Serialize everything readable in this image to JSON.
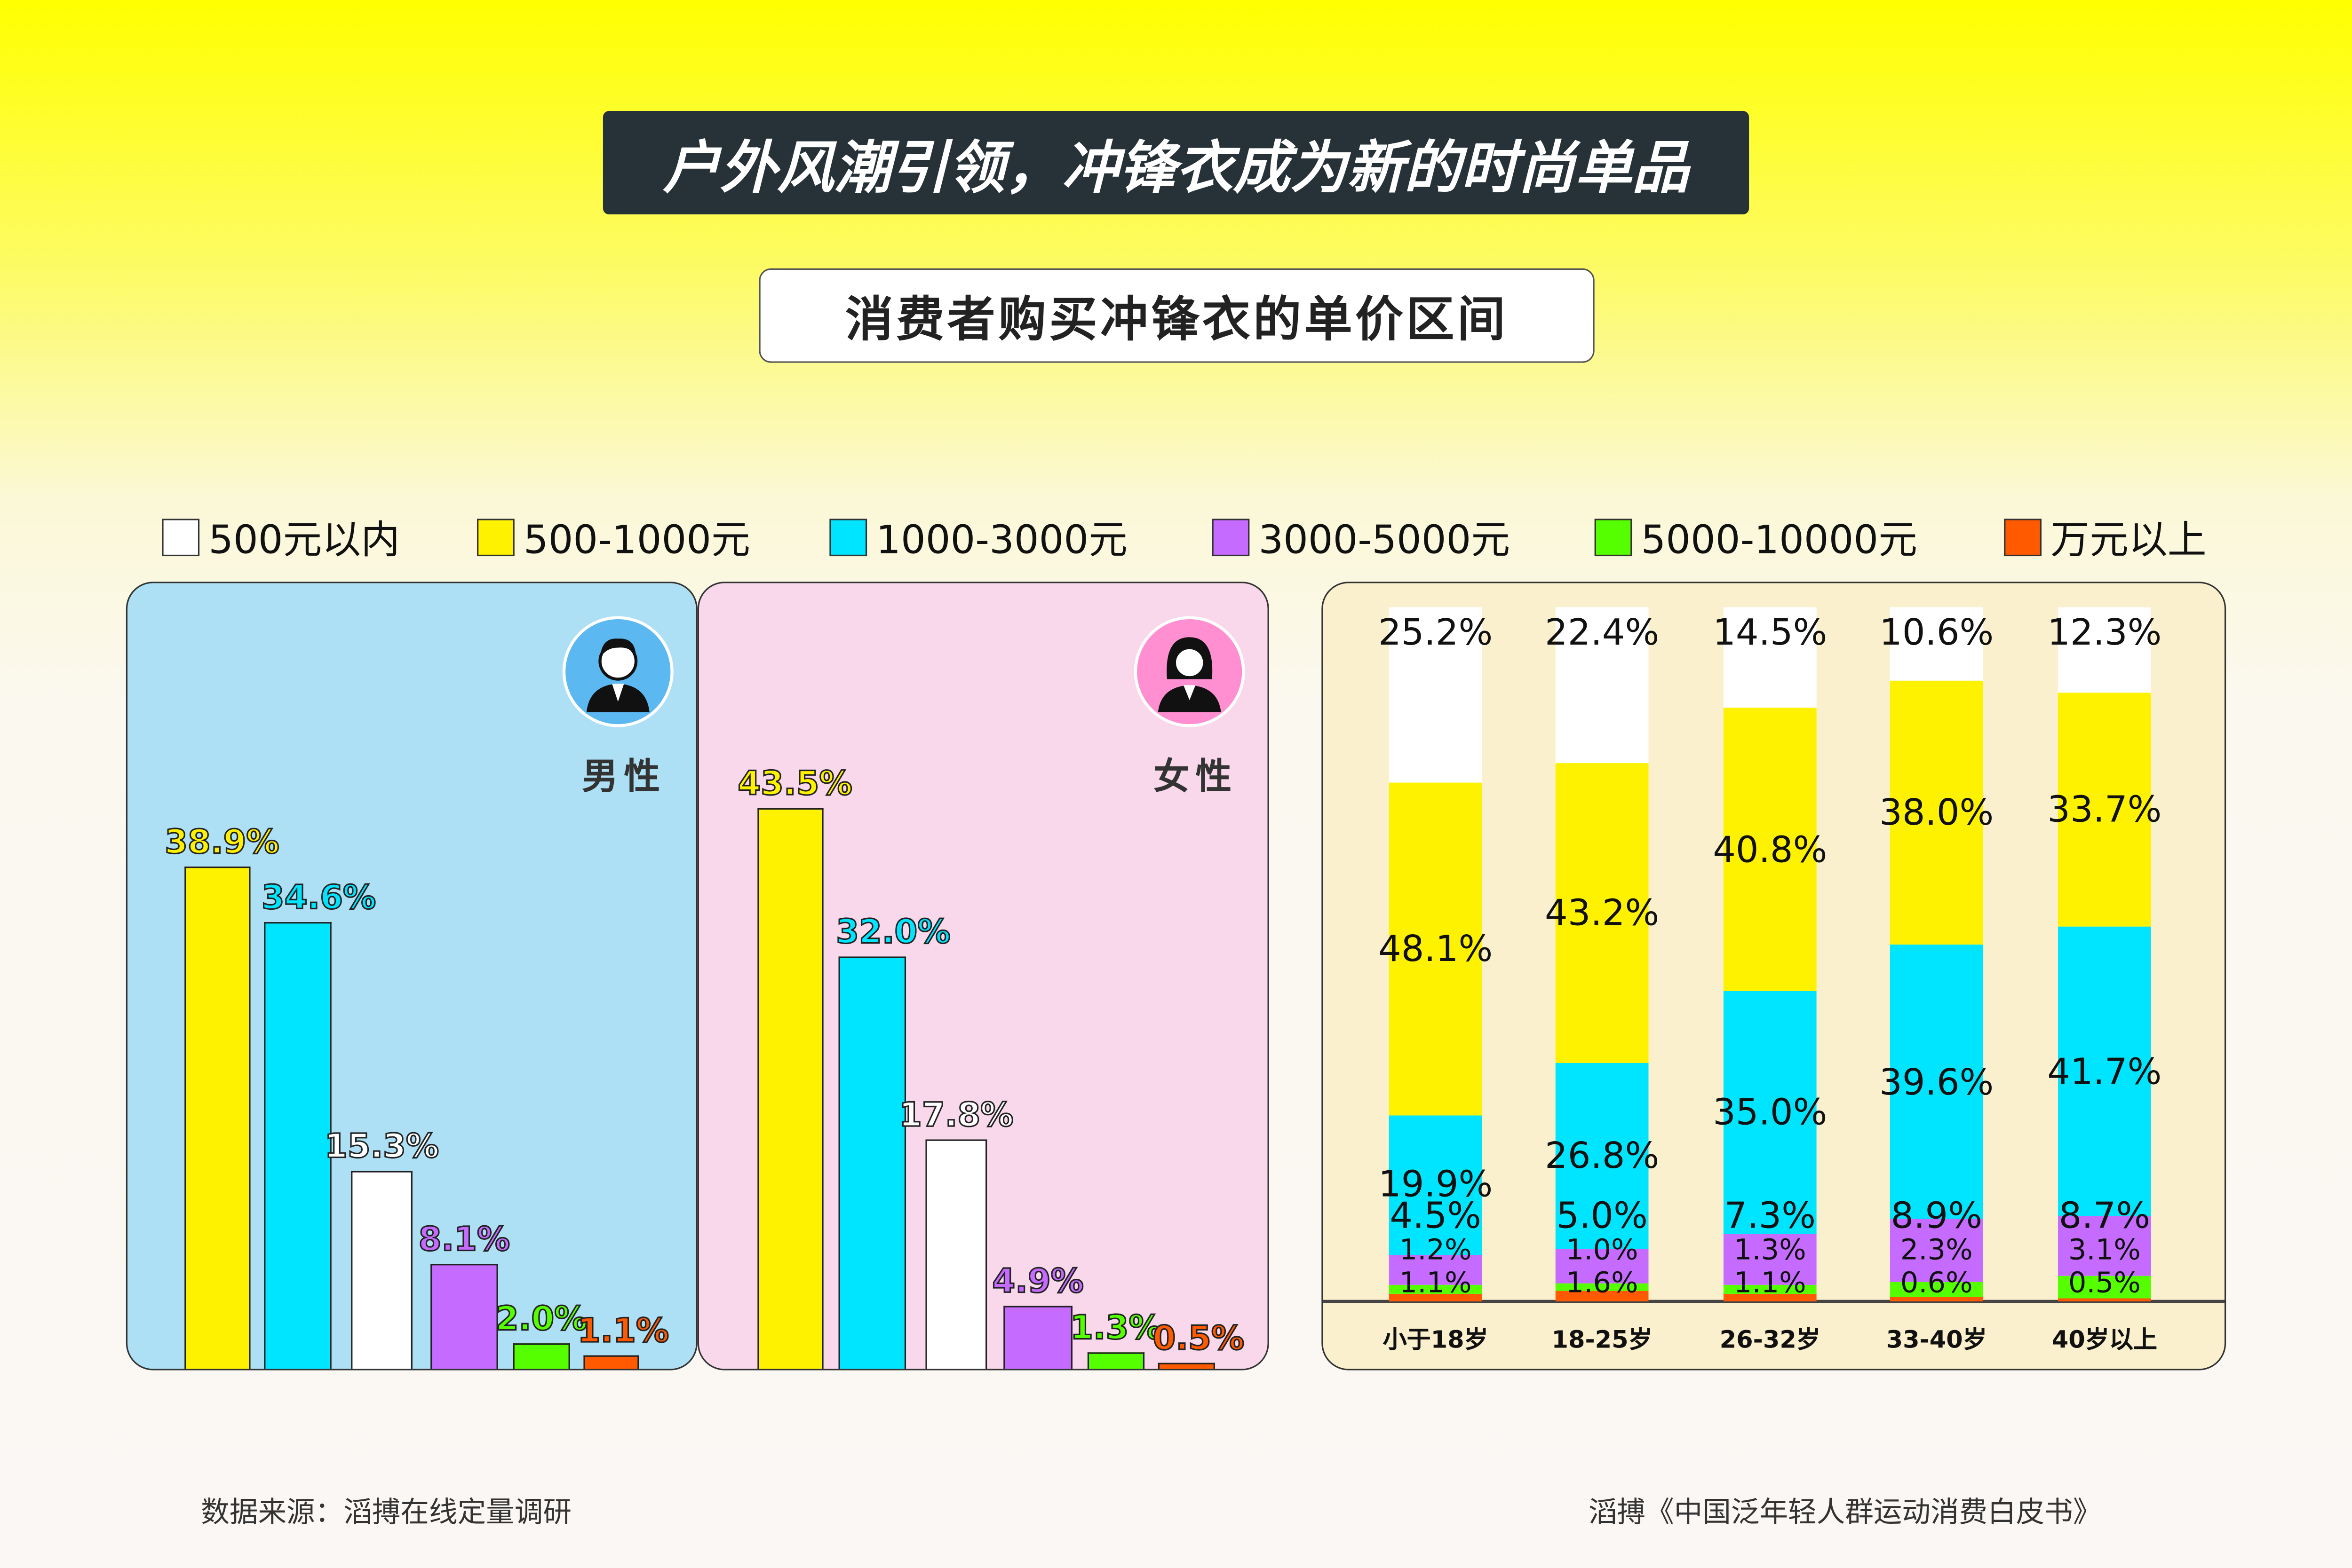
{
  "title": "户外风潮引领，冲锋衣成为新的时尚单品",
  "subtitle": "消费者购买冲锋衣的单价区间",
  "colors": {
    "500元以内": "#ffffff",
    "500-1000元": "#fff200",
    "1000-3000元": "#00e5ff",
    "3000-5000元": "#c56bff",
    "5000-10000元": "#55ff00",
    "万元以上": "#ff5a00"
  },
  "chart_data": [
    {
      "type": "bar",
      "title": "男性",
      "icon": "male-avatar-icon",
      "categories": [
        "500-1000元",
        "1000-3000元",
        "500元以内",
        "3000-5000元",
        "5000-10000元",
        "万元以上"
      ],
      "values": [
        38.9,
        34.6,
        15.3,
        8.1,
        2.0,
        1.1
      ],
      "labels": [
        "38.9%",
        "34.6%",
        "15.3%",
        "8.1%",
        "2.0%",
        "1.1%"
      ],
      "unit": "%"
    },
    {
      "type": "bar",
      "title": "女性",
      "icon": "female-avatar-icon",
      "categories": [
        "500-1000元",
        "1000-3000元",
        "500元以内",
        "3000-5000元",
        "5000-10000元",
        "万元以上"
      ],
      "values": [
        43.5,
        32.0,
        17.8,
        4.9,
        1.3,
        0.5
      ],
      "labels": [
        "43.5%",
        "32.0%",
        "17.8%",
        "4.9%",
        "1.3%",
        "0.5%"
      ],
      "unit": "%"
    },
    {
      "type": "bar",
      "stacked": true,
      "categories": [
        "小于18岁",
        "18-25岁",
        "26-32岁",
        "33-40岁",
        "40岁以上"
      ],
      "series": [
        {
          "name": "万元以上",
          "values": [
            1.1,
            1.6,
            1.1,
            0.6,
            0.5
          ]
        },
        {
          "name": "5000-10000元",
          "values": [
            1.2,
            1.0,
            1.3,
            2.3,
            3.1
          ]
        },
        {
          "name": "3000-5000元",
          "values": [
            4.5,
            5.0,
            7.3,
            8.9,
            8.7
          ]
        },
        {
          "name": "1000-3000元",
          "values": [
            19.9,
            26.8,
            35.0,
            39.6,
            41.7
          ]
        },
        {
          "name": "500-1000元",
          "values": [
            48.1,
            43.2,
            40.8,
            38.0,
            33.7
          ]
        },
        {
          "name": "500元以内",
          "values": [
            25.2,
            22.4,
            14.5,
            10.6,
            12.3
          ]
        }
      ]
    }
  ],
  "legend": [
    "500元以内",
    "500-1000元",
    "1000-3000元",
    "3000-5000元",
    "5000-10000元",
    "万元以上"
  ],
  "footer": {
    "source": "数据来源：滔搏在线定量调研",
    "publication": "滔搏《中国泛年轻人群运动消费白皮书》"
  }
}
